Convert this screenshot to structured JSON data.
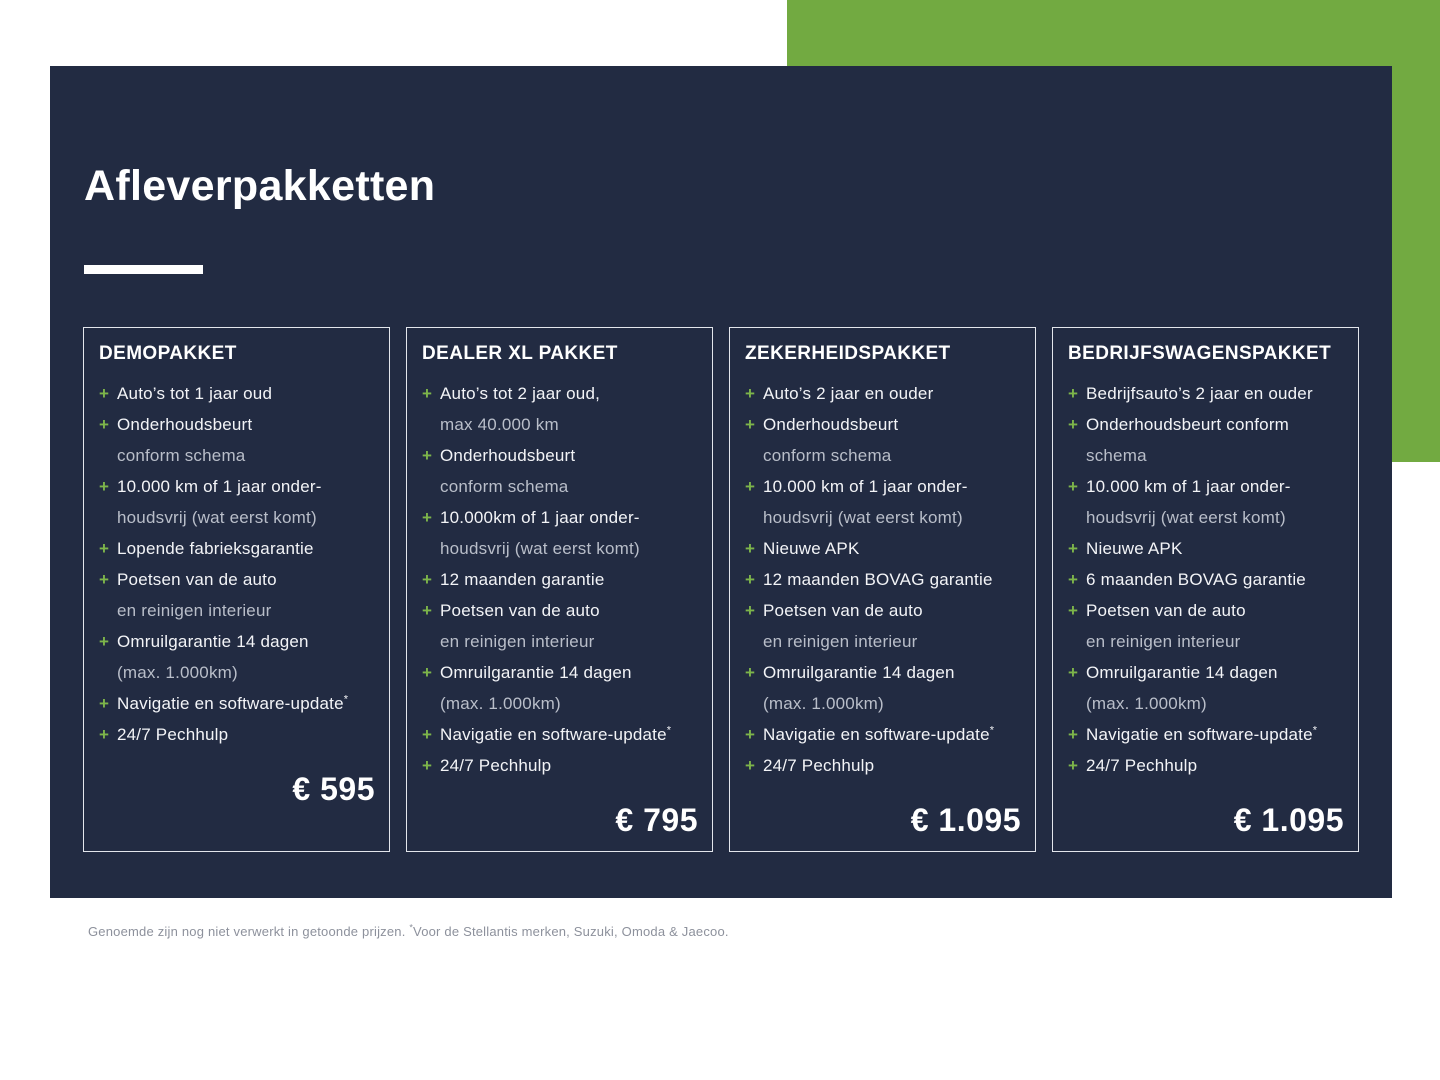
{
  "title": "Afleverpakketten",
  "icons": {
    "plus": "+"
  },
  "colors": {
    "panel_navy": "#222b42",
    "accent_green": "#72aa41",
    "plus_green": "#7db54a",
    "text_white": "#f3f4f7",
    "text_dim": "#b9bec9",
    "border_light": "#e3e6ec",
    "footnote_gray": "#8d919c"
  },
  "cards": [
    {
      "name": "DEMOPAKKET",
      "price": "€ 595",
      "items": [
        {
          "lines": [
            "Auto’s tot 1 jaar oud"
          ]
        },
        {
          "lines": [
            "Onderhoudsbeurt",
            "conform schema"
          ]
        },
        {
          "lines": [
            "10.000 km of 1 jaar onder-",
            "houdsvrij (wat eerst komt)"
          ]
        },
        {
          "lines": [
            "Lopende fabrieksgarantie"
          ]
        },
        {
          "lines": [
            "Poetsen van de auto",
            "en reinigen interieur"
          ]
        },
        {
          "lines": [
            "Omruilgarantie 14 dagen",
            "(max. 1.000km)"
          ]
        },
        {
          "lines": [
            "Navigatie en software-update*"
          ]
        },
        {
          "lines": [
            "24/7 Pechhulp"
          ]
        }
      ]
    },
    {
      "name": "DEALER XL PAKKET",
      "price": "€ 795",
      "items": [
        {
          "lines": [
            "Auto’s tot 2 jaar oud,",
            "max 40.000 km"
          ]
        },
        {
          "lines": [
            "Onderhoudsbeurt",
            "conform schema"
          ]
        },
        {
          "lines": [
            "10.000km of 1 jaar onder-",
            "houdsvrij (wat eerst komt)"
          ]
        },
        {
          "lines": [
            "12 maanden garantie"
          ]
        },
        {
          "lines": [
            "Poetsen van de auto",
            "en reinigen interieur"
          ]
        },
        {
          "lines": [
            "Omruilgarantie 14 dagen",
            "(max. 1.000km)"
          ]
        },
        {
          "lines": [
            "Navigatie en software-update*"
          ]
        },
        {
          "lines": [
            "24/7 Pechhulp"
          ]
        }
      ]
    },
    {
      "name": "ZEKERHEIDSPAKKET",
      "price": "€ 1.095",
      "items": [
        {
          "lines": [
            "Auto’s 2 jaar en ouder"
          ]
        },
        {
          "lines": [
            "Onderhoudsbeurt",
            "conform schema"
          ]
        },
        {
          "lines": [
            "10.000 km of 1 jaar onder-",
            "houdsvrij (wat eerst komt)"
          ]
        },
        {
          "lines": [
            "Nieuwe APK"
          ]
        },
        {
          "lines": [
            "12 maanden BOVAG garantie"
          ]
        },
        {
          "lines": [
            "Poetsen van de auto",
            "en reinigen interieur"
          ]
        },
        {
          "lines": [
            "Omruilgarantie 14 dagen",
            "(max. 1.000km)"
          ]
        },
        {
          "lines": [
            "Navigatie en software-update*"
          ]
        },
        {
          "lines": [
            "24/7 Pechhulp"
          ]
        }
      ]
    },
    {
      "name": "BEDRIJFSWAGENSPAKKET",
      "price": "€ 1.095",
      "items": [
        {
          "lines": [
            "Bedrijfsauto’s 2 jaar en ouder"
          ]
        },
        {
          "lines": [
            "Onderhoudsbeurt conform",
            "schema"
          ]
        },
        {
          "lines": [
            "10.000 km of 1 jaar onder-",
            "houdsvrij (wat eerst komt)"
          ]
        },
        {
          "lines": [
            "Nieuwe APK"
          ]
        },
        {
          "lines": [
            "6 maanden BOVAG garantie"
          ]
        },
        {
          "lines": [
            "Poetsen van de auto",
            "en reinigen interieur"
          ]
        },
        {
          "lines": [
            "Omruilgarantie 14 dagen",
            "(max. 1.000km)"
          ]
        },
        {
          "lines": [
            "Navigatie en software-update*"
          ]
        },
        {
          "lines": [
            "24/7 Pechhulp"
          ]
        }
      ]
    }
  ],
  "footnote": {
    "prefix": "Genoemde zijn nog niet verwerkt in getoonde prijzen. ",
    "asterisk": "*",
    "suffix": "Voor de Stellantis merken, Suzuki, Omoda & Jaecoo."
  }
}
